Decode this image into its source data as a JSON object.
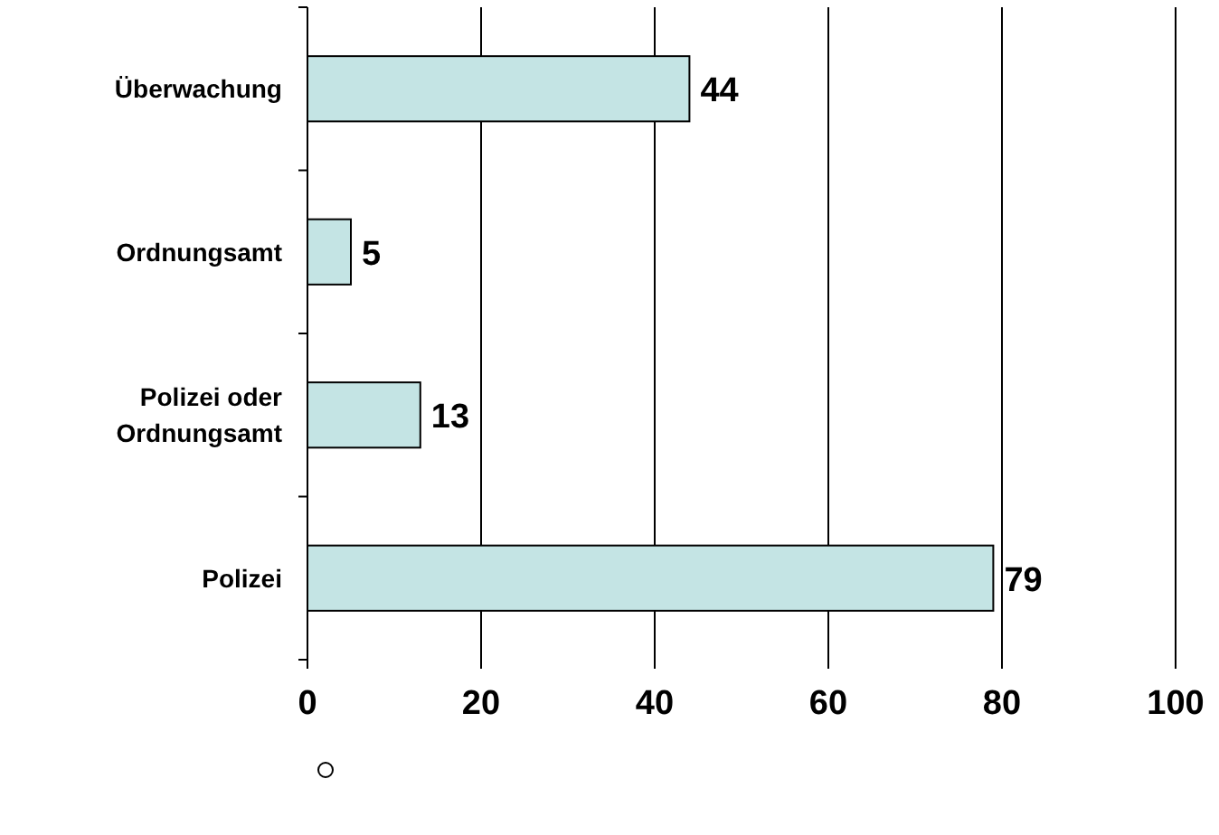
{
  "chart_data": {
    "type": "bar",
    "orientation": "horizontal",
    "categories": [
      "Überwachung",
      "Ordnungsamt",
      "Polizei oder Ordnungsamt",
      "Polizei"
    ],
    "values": [
      44,
      5,
      13,
      79
    ],
    "color": "#c4e4e4",
    "xlim": [
      0,
      100
    ],
    "xticks": [
      0,
      20,
      40,
      60,
      80,
      100
    ],
    "grid": "x",
    "data_labels": true
  }
}
